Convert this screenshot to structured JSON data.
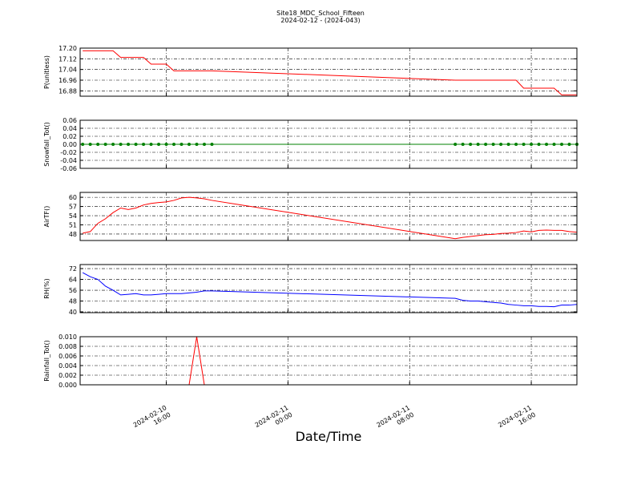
{
  "chart_data": [
    {
      "type": "line",
      "title": "Site18_MDC_School_Fifteen",
      "subtitle": "2024-02-12 - (2024-043)",
      "ylabel": "P(unitless)",
      "x": [
        "2024-02-10 10:30",
        "2024-02-10 11:00",
        "2024-02-10 11:30",
        "2024-02-10 12:00",
        "2024-02-10 12:30",
        "2024-02-10 13:00",
        "2024-02-10 13:30",
        "2024-02-10 14:00",
        "2024-02-10 14:30",
        "2024-02-10 15:00",
        "2024-02-10 15:30",
        "2024-02-10 16:00",
        "2024-02-10 16:30",
        "2024-02-10 17:00",
        "2024-02-10 17:30",
        "2024-02-10 18:00",
        "2024-02-10 18:30",
        "2024-02-10 19:00",
        "2024-02-11 11:00",
        "2024-02-11 11:30",
        "2024-02-11 12:00",
        "2024-02-11 12:30",
        "2024-02-11 13:00",
        "2024-02-11 13:30",
        "2024-02-11 14:00",
        "2024-02-11 14:30",
        "2024-02-11 15:00",
        "2024-02-11 15:30",
        "2024-02-11 16:00",
        "2024-02-11 16:30",
        "2024-02-11 17:00",
        "2024-02-11 17:30",
        "2024-02-11 18:00",
        "2024-02-11 18:30",
        "2024-02-11 19:00"
      ],
      "series": [
        {
          "color": "#ff0000",
          "values": [
            17.18,
            17.18,
            17.18,
            17.18,
            17.18,
            17.13,
            17.13,
            17.13,
            17.13,
            17.08,
            17.08,
            17.08,
            17.03,
            17.03,
            17.03,
            17.03,
            17.03,
            17.03,
            16.96,
            16.96,
            16.96,
            16.96,
            16.96,
            16.96,
            16.96,
            16.96,
            16.96,
            16.9,
            16.9,
            16.9,
            16.9,
            16.9,
            16.85,
            16.85,
            16.85
          ]
        }
      ],
      "ylim": [
        16.84,
        17.2
      ],
      "yticks": [
        16.88,
        16.96,
        17.04,
        17.12,
        {
          "value": 17.2,
          "label": "17.20"
        }
      ],
      "grid": true
    },
    {
      "type": "line",
      "ylabel": "Snowfall_Tot()",
      "x": [
        "2024-02-10 10:30",
        "2024-02-10 11:00",
        "2024-02-10 11:30",
        "2024-02-10 12:00",
        "2024-02-10 12:30",
        "2024-02-10 13:00",
        "2024-02-10 13:30",
        "2024-02-10 14:00",
        "2024-02-10 14:30",
        "2024-02-10 15:00",
        "2024-02-10 15:30",
        "2024-02-10 16:00",
        "2024-02-10 16:30",
        "2024-02-10 17:00",
        "2024-02-10 17:30",
        "2024-02-10 18:00",
        "2024-02-10 18:30",
        "2024-02-10 19:00",
        "2024-02-11 11:00",
        "2024-02-11 11:30",
        "2024-02-11 12:00",
        "2024-02-11 12:30",
        "2024-02-11 13:00",
        "2024-02-11 13:30",
        "2024-02-11 14:00",
        "2024-02-11 14:30",
        "2024-02-11 15:00",
        "2024-02-11 15:30",
        "2024-02-11 16:00",
        "2024-02-11 16:30",
        "2024-02-11 17:00",
        "2024-02-11 17:30",
        "2024-02-11 18:00",
        "2024-02-11 18:30",
        "2024-02-11 19:00"
      ],
      "series": [
        {
          "color": "#008000",
          "marker": "o",
          "values": [
            0,
            0,
            0,
            0,
            0,
            0,
            0,
            0,
            0,
            0,
            0,
            0,
            0,
            0,
            0,
            0,
            0,
            0,
            0,
            0,
            0,
            0,
            0,
            0,
            0,
            0,
            0,
            0,
            0,
            0,
            0,
            0,
            0,
            0,
            0
          ]
        }
      ],
      "ylim": [
        -0.06,
        0.06
      ],
      "yticks": [
        -0.06,
        -0.04,
        -0.02,
        {
          "value": 0,
          "label": "0.00"
        },
        0.02,
        0.04,
        0.06
      ],
      "grid": true
    },
    {
      "type": "line",
      "ylabel": "AirTF()",
      "x": [
        "2024-02-10 10:30",
        "2024-02-10 11:00",
        "2024-02-10 11:30",
        "2024-02-10 12:00",
        "2024-02-10 12:30",
        "2024-02-10 13:00",
        "2024-02-10 13:30",
        "2024-02-10 14:00",
        "2024-02-10 14:30",
        "2024-02-10 15:00",
        "2024-02-10 15:30",
        "2024-02-10 16:00",
        "2024-02-10 16:30",
        "2024-02-10 17:00",
        "2024-02-10 17:30",
        "2024-02-10 18:00",
        "2024-02-10 18:30",
        "2024-02-10 19:00",
        "2024-02-11 11:00",
        "2024-02-11 11:30",
        "2024-02-11 12:00",
        "2024-02-11 12:30",
        "2024-02-11 13:00",
        "2024-02-11 13:30",
        "2024-02-11 14:00",
        "2024-02-11 14:30",
        "2024-02-11 15:00",
        "2024-02-11 15:30",
        "2024-02-11 16:00",
        "2024-02-11 16:30",
        "2024-02-11 17:00",
        "2024-02-11 17:30",
        "2024-02-11 18:00",
        "2024-02-11 18:30",
        "2024-02-11 19:00"
      ],
      "series": [
        {
          "color": "#ff0000",
          "values": [
            48.3,
            48.8,
            51.5,
            53,
            55,
            56.5,
            56,
            56.5,
            57.5,
            58,
            58.3,
            58.5,
            59,
            59.8,
            60,
            59.8,
            59.5,
            59,
            46.5,
            46.9,
            47.2,
            47.5,
            47.8,
            47.9,
            48.2,
            48.3,
            48.5,
            49,
            48.7,
            49.2,
            49.3,
            49.2,
            49.2,
            48.8,
            48.6
          ]
        }
      ],
      "ylim": [
        45.9,
        61.6
      ],
      "yticks": [
        48,
        51,
        54,
        57,
        60
      ],
      "grid": true
    },
    {
      "type": "line",
      "ylabel": "RH(%)",
      "x": [
        "2024-02-10 10:30",
        "2024-02-10 11:00",
        "2024-02-10 11:30",
        "2024-02-10 12:00",
        "2024-02-10 12:30",
        "2024-02-10 13:00",
        "2024-02-10 13:30",
        "2024-02-10 14:00",
        "2024-02-10 14:30",
        "2024-02-10 15:00",
        "2024-02-10 15:30",
        "2024-02-10 16:00",
        "2024-02-10 16:30",
        "2024-02-10 17:00",
        "2024-02-10 17:30",
        "2024-02-10 18:00",
        "2024-02-10 18:30",
        "2024-02-10 19:00",
        "2024-02-11 11:00",
        "2024-02-11 11:30",
        "2024-02-11 12:00",
        "2024-02-11 12:30",
        "2024-02-11 13:00",
        "2024-02-11 13:30",
        "2024-02-11 14:00",
        "2024-02-11 14:30",
        "2024-02-11 15:00",
        "2024-02-11 15:30",
        "2024-02-11 16:00",
        "2024-02-11 16:30",
        "2024-02-11 17:00",
        "2024-02-11 17:30",
        "2024-02-11 18:00",
        "2024-02-11 18:30",
        "2024-02-11 19:00"
      ],
      "series": [
        {
          "color": "#0000ff",
          "values": [
            69,
            66,
            64,
            59,
            56,
            52.5,
            53,
            53.5,
            52.5,
            52.5,
            53,
            53.5,
            53.5,
            53.5,
            54,
            54.5,
            55.5,
            55.5,
            50,
            48.5,
            48,
            48,
            47.5,
            47,
            46.5,
            45.5,
            45,
            44.5,
            44.5,
            44,
            44,
            43.8,
            45,
            45,
            45.5
          ]
        }
      ],
      "ylim": [
        39.4,
        75
      ],
      "yticks": [
        40,
        48,
        56,
        64,
        72
      ],
      "grid": true
    },
    {
      "type": "line",
      "ylabel": "Rainfall_Tot()",
      "xlabel": "Date/Time",
      "x": [
        "2024-02-10 10:30",
        "2024-02-10 11:00",
        "2024-02-10 11:30",
        "2024-02-10 12:00",
        "2024-02-10 12:30",
        "2024-02-10 13:00",
        "2024-02-10 13:30",
        "2024-02-10 14:00",
        "2024-02-10 14:30",
        "2024-02-10 15:00",
        "2024-02-10 15:30",
        "2024-02-10 16:00",
        "2024-02-10 16:30",
        "2024-02-10 17:00",
        "2024-02-10 17:30",
        "2024-02-10 18:00",
        "2024-02-10 18:30",
        "2024-02-10 19:00",
        "2024-02-11 11:00",
        "2024-02-11 11:30",
        "2024-02-11 12:00",
        "2024-02-11 12:30",
        "2024-02-11 13:00",
        "2024-02-11 13:30",
        "2024-02-11 14:00",
        "2024-02-11 14:30",
        "2024-02-11 15:00",
        "2024-02-11 15:30",
        "2024-02-11 16:00",
        "2024-02-11 16:30",
        "2024-02-11 17:00",
        "2024-02-11 17:30",
        "2024-02-11 18:00",
        "2024-02-11 18:30",
        "2024-02-11 19:00"
      ],
      "series": [
        {
          "color": "#ff0000",
          "values": [
            0,
            0,
            0,
            0,
            0,
            0,
            0,
            0,
            0,
            0,
            0,
            0,
            0,
            0,
            0,
            0.01,
            0,
            0,
            0,
            0,
            0,
            0,
            0,
            0,
            0,
            0,
            0,
            0,
            0,
            0,
            0,
            0,
            0,
            0,
            0
          ]
        }
      ],
      "ylim": [
        0,
        0.01
      ],
      "yticks": [
        {
          "value": 0,
          "label": "0.000"
        },
        0.002,
        0.004,
        0.006,
        0.008,
        {
          "value": 0.01,
          "label": "0.010"
        }
      ],
      "grid": true,
      "xlim": [
        "2024-02-10 10:20",
        "2024-02-11 19:00"
      ],
      "xticks": [
        {
          "value": "2024-02-10 16:00",
          "label": "2024-02-10 16:00"
        },
        {
          "value": "2024-02-11 00:00",
          "label": "2024-02-11 00:00"
        },
        {
          "value": "2024-02-11 08:00",
          "label": "2024-02-11 08:00"
        },
        {
          "value": "2024-02-11 16:00",
          "label": "2024-02-11 16:00"
        }
      ]
    }
  ]
}
